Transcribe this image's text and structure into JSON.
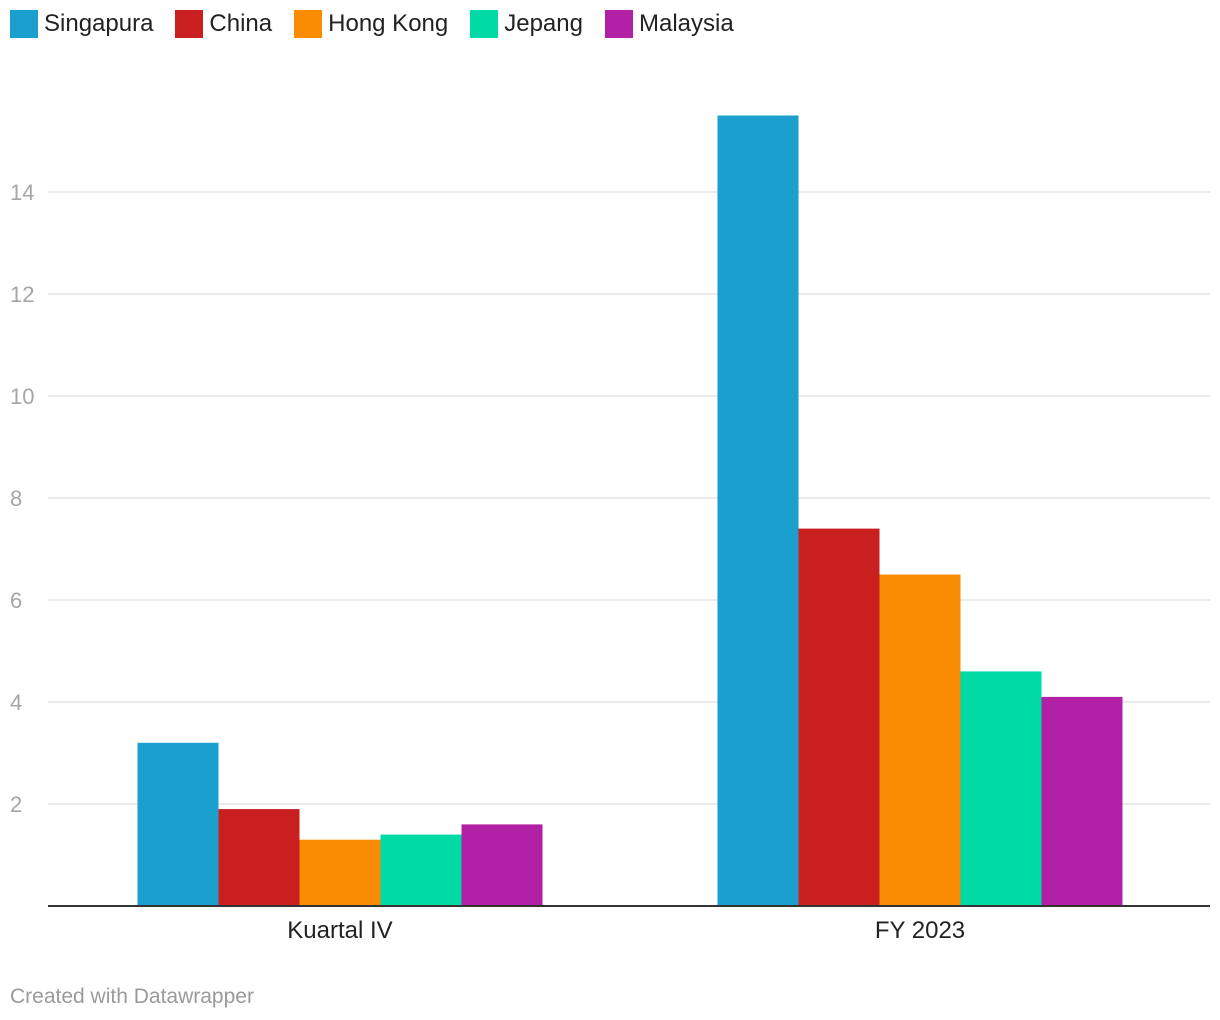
{
  "colors": {
    "singapura": "#1a9fce",
    "china": "#c91f1f",
    "hong_kong": "#f98c00",
    "jepang": "#00dba6",
    "malaysia": "#b120a5",
    "grid": "#e3e3e3",
    "axis": "#333333"
  },
  "legend": [
    {
      "label": "Singapura",
      "color": "#1a9fce"
    },
    {
      "label": "China",
      "color": "#c91f1f"
    },
    {
      "label": "Hong Kong",
      "color": "#f98c00"
    },
    {
      "label": "Jepang",
      "color": "#00dba6"
    },
    {
      "label": "Malaysia",
      "color": "#b120a5"
    }
  ],
  "footer": {
    "credit": "Created with Datawrapper"
  },
  "chart_data": {
    "type": "bar",
    "categories": [
      "Kuartal IV",
      "FY 2023"
    ],
    "series": [
      {
        "name": "Singapura",
        "color": "#1a9fce",
        "values": [
          3.2,
          15.5
        ]
      },
      {
        "name": "China",
        "color": "#c91f1f",
        "values": [
          1.9,
          7.4
        ]
      },
      {
        "name": "Hong Kong",
        "color": "#f98c00",
        "values": [
          1.3,
          6.5
        ]
      },
      {
        "name": "Jepang",
        "color": "#00dba6",
        "values": [
          1.4,
          4.6
        ]
      },
      {
        "name": "Malaysia",
        "color": "#b120a5",
        "values": [
          1.6,
          4.1
        ]
      }
    ],
    "yticks": [
      2,
      4,
      6,
      8,
      10,
      12,
      14
    ],
    "ylim": [
      0,
      16
    ],
    "grid": true,
    "legend_position": "top-left",
    "title": "",
    "xlabel": "",
    "ylabel": ""
  }
}
